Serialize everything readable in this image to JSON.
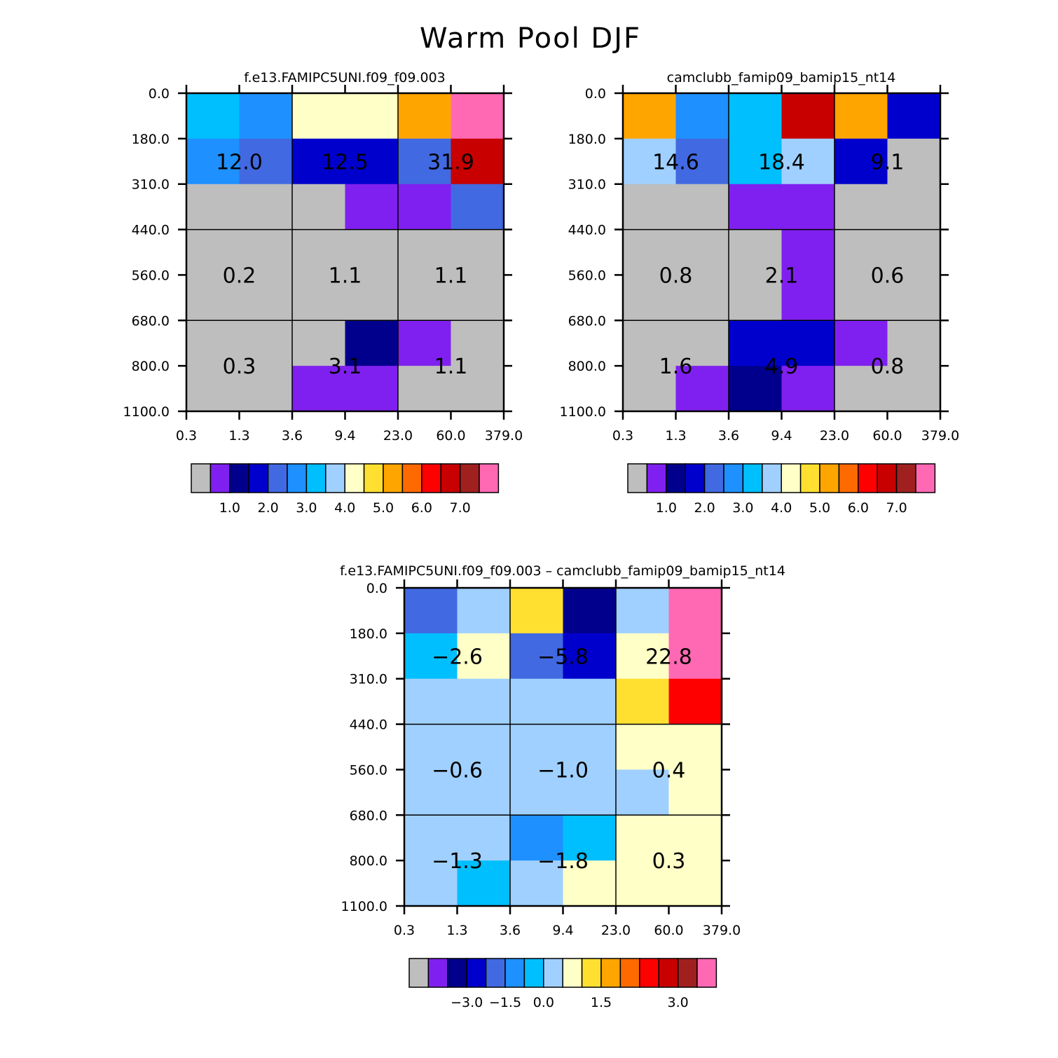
{
  "figure_title": "Warm Pool DJF",
  "colors": {
    "palette": [
      "#BEBEBE",
      "#8020F0",
      "#00008C",
      "#0000CD",
      "#4169E1",
      "#1E90FF",
      "#00BFFF",
      "#A0D0FF",
      "#FFFFC8",
      "#FFE030",
      "#FFA500",
      "#FF6A00",
      "#FF0000",
      "#C80000",
      "#A02020",
      "#FF69B4"
    ],
    "grid_line": "#000000"
  },
  "chart_data": [
    {
      "type": "heatmap",
      "title": "f.e13.FAMIPC5UNI.f09_f09.003",
      "x_tick_labels": [
        "0.3",
        "1.3",
        "3.6",
        "9.4",
        "23.0",
        "60.0",
        "379.0"
      ],
      "y_tick_labels": [
        "0.0",
        "180.0",
        "310.0",
        "440.0",
        "560.0",
        "680.0",
        "800.0",
        "1100.0"
      ],
      "cell_color_index": [
        [
          6,
          5,
          8,
          8,
          10,
          15
        ],
        [
          5,
          4,
          3,
          3,
          4,
          13
        ],
        [
          0,
          0,
          0,
          1,
          1,
          4
        ],
        [
          0,
          0,
          0,
          0,
          0,
          0
        ],
        [
          0,
          0,
          0,
          0,
          0,
          0
        ],
        [
          0,
          0,
          0,
          2,
          1,
          0
        ],
        [
          0,
          0,
          1,
          1,
          0,
          0
        ]
      ],
      "box_values": [
        [
          "12.0",
          "12.5",
          "31.9"
        ],
        [
          "0.2",
          "1.1",
          "1.1"
        ],
        [
          "0.3",
          "3.1",
          "1.1"
        ]
      ],
      "colorbar_labels": [
        "1.0",
        "2.0",
        "3.0",
        "4.0",
        "5.0",
        "6.0",
        "7.0"
      ]
    },
    {
      "type": "heatmap",
      "title": "camclubb_famip09_bamip15_nt14",
      "x_tick_labels": [
        "0.3",
        "1.3",
        "3.6",
        "9.4",
        "23.0",
        "60.0",
        "379.0"
      ],
      "y_tick_labels": [
        "0.0",
        "180.0",
        "310.0",
        "440.0",
        "560.0",
        "680.0",
        "800.0",
        "1100.0"
      ],
      "cell_color_index": [
        [
          10,
          5,
          6,
          13,
          10,
          3
        ],
        [
          7,
          4,
          6,
          7,
          3,
          0
        ],
        [
          0,
          0,
          1,
          1,
          0,
          0
        ],
        [
          0,
          0,
          0,
          1,
          0,
          0
        ],
        [
          0,
          0,
          0,
          1,
          0,
          0
        ],
        [
          0,
          0,
          3,
          3,
          1,
          0
        ],
        [
          0,
          1,
          2,
          1,
          0,
          0
        ]
      ],
      "box_values": [
        [
          "14.6",
          "18.4",
          "9.1"
        ],
        [
          "0.8",
          "2.1",
          "0.6"
        ],
        [
          "1.6",
          "4.9",
          "0.8"
        ]
      ],
      "colorbar_labels": [
        "1.0",
        "2.0",
        "3.0",
        "4.0",
        "5.0",
        "6.0",
        "7.0"
      ]
    },
    {
      "type": "heatmap",
      "title": "f.e13.FAMIPC5UNI.f09_f09.003 – camclubb_famip09_bamip15_nt14",
      "x_tick_labels": [
        "0.3",
        "1.3",
        "3.6",
        "9.4",
        "23.0",
        "60.0",
        "379.0"
      ],
      "y_tick_labels": [
        "0.0",
        "180.0",
        "310.0",
        "440.0",
        "560.0",
        "680.0",
        "800.0",
        "1100.0"
      ],
      "cell_color_index": [
        [
          4,
          7,
          9,
          2,
          7,
          15
        ],
        [
          6,
          8,
          4,
          3,
          8,
          15
        ],
        [
          7,
          7,
          7,
          7,
          9,
          12
        ],
        [
          7,
          7,
          7,
          7,
          8,
          8
        ],
        [
          7,
          7,
          7,
          7,
          7,
          8
        ],
        [
          7,
          7,
          5,
          6,
          8,
          8
        ],
        [
          7,
          6,
          7,
          8,
          8,
          8
        ]
      ],
      "box_values": [
        [
          "−2.6",
          "−5.8",
          "22.8"
        ],
        [
          "−0.6",
          "−1.0",
          "0.4"
        ],
        [
          "−1.3",
          "−1.8",
          "0.3"
        ]
      ],
      "colorbar_labels": [
        "−3.0",
        "−1.5",
        "0.0",
        "1.5",
        "3.0"
      ]
    }
  ]
}
